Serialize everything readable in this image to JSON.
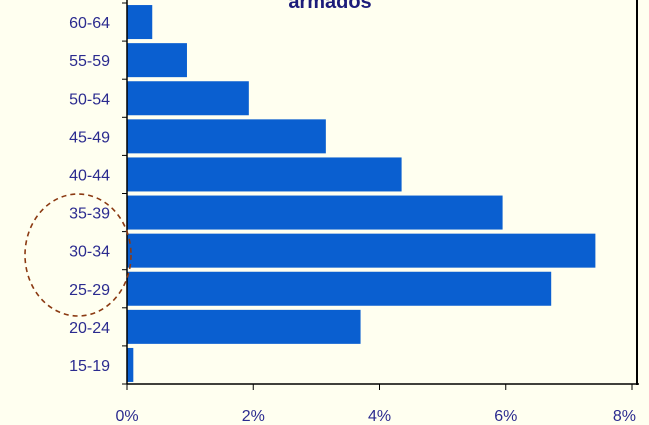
{
  "chart_data": {
    "type": "bar",
    "orientation": "horizontal",
    "title": "armados",
    "xlabel": "",
    "ylabel": "",
    "categories": [
      "60-64",
      "55-59",
      "50-54",
      "45-49",
      "40-44",
      "35-39",
      "30-34",
      "25-29",
      "20-24",
      "15-19"
    ],
    "values": [
      0.4,
      0.95,
      1.93,
      3.15,
      4.35,
      5.95,
      7.42,
      6.72,
      3.7,
      0.1
    ],
    "xlim": [
      0,
      8
    ],
    "x_ticks": [
      "0%",
      "2%",
      "4%",
      "6%",
      "8%"
    ],
    "grid": false,
    "annotation": "dashed circle around 35-39, 30-34 and 25-29",
    "colors": {
      "bar": "#0a5fd0",
      "background": "#fffff0",
      "axis": "#000000",
      "text": "#2b2b8f",
      "annotation": "#8b3a12"
    }
  }
}
